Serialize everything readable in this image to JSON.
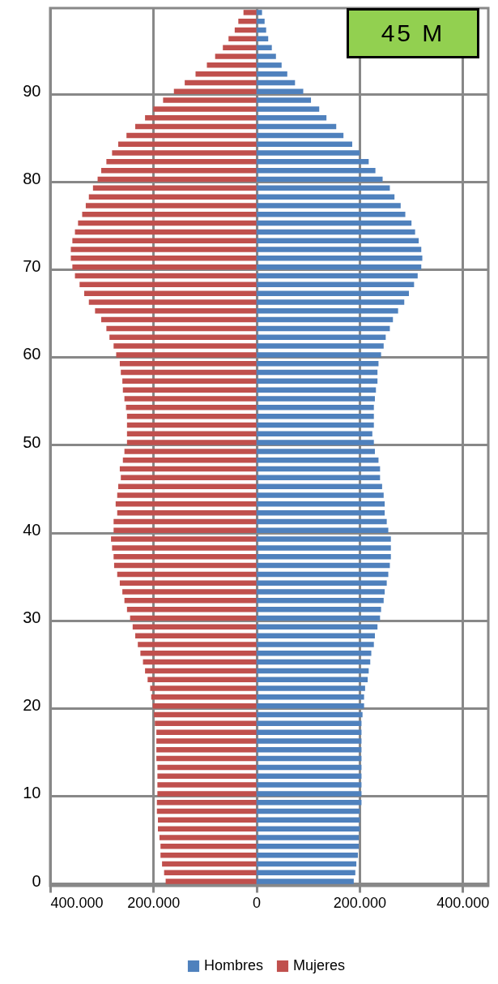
{
  "chart_data": {
    "type": "bar",
    "orientation": "horizontal",
    "categories": [
      null,
      null,
      null,
      null,
      null,
      null,
      null,
      null,
      null,
      "90",
      null,
      null,
      null,
      null,
      null,
      null,
      null,
      null,
      null,
      "80",
      null,
      null,
      null,
      null,
      null,
      null,
      null,
      null,
      null,
      "70",
      null,
      null,
      null,
      null,
      null,
      null,
      null,
      null,
      null,
      "60",
      null,
      null,
      null,
      null,
      null,
      null,
      null,
      null,
      null,
      "50",
      null,
      null,
      null,
      null,
      null,
      null,
      null,
      null,
      null,
      "40",
      null,
      null,
      null,
      null,
      null,
      null,
      null,
      null,
      null,
      "30",
      null,
      null,
      null,
      null,
      null,
      null,
      null,
      null,
      null,
      "20",
      null,
      null,
      null,
      null,
      null,
      null,
      null,
      null,
      null,
      "10",
      null,
      null,
      null,
      null,
      null,
      null,
      null,
      null,
      null,
      "0"
    ],
    "series": [
      {
        "name": "Hombres",
        "color": "#4f81bd",
        "values": [
          11000,
          16000,
          19000,
          23000,
          30000,
          38000,
          49000,
          60000,
          75000,
          91000,
          106000,
          122000,
          136000,
          155000,
          169000,
          186000,
          201000,
          218000,
          231000,
          245000,
          259000,
          268000,
          280000,
          289000,
          301000,
          308000,
          315000,
          320000,
          322000,
          320000,
          313000,
          306000,
          296000,
          287000,
          275000,
          265000,
          259000,
          251000,
          247000,
          242000,
          237000,
          235000,
          235000,
          232000,
          230000,
          228000,
          228000,
          228000,
          225000,
          228000,
          230000,
          237000,
          240000,
          240000,
          244000,
          247000,
          249000,
          249000,
          253000,
          256000,
          261000,
          261000,
          261000,
          259000,
          256000,
          253000,
          249000,
          247000,
          242000,
          240000,
          235000,
          230000,
          228000,
          223000,
          221000,
          218000,
          216000,
          211000,
          209000,
          209000,
          206000,
          204000,
          204000,
          204000,
          204000,
          204000,
          204000,
          204000,
          204000,
          204000,
          204000,
          201000,
          201000,
          201000,
          199000,
          199000,
          197000,
          194000,
          192000,
          189000
        ]
      },
      {
        "name": "Mujeres",
        "color": "#c0504d",
        "values": [
          -25000,
          -35000,
          -42000,
          -54000,
          -65000,
          -80000,
          -96000,
          -118000,
          -139000,
          -160000,
          -181000,
          -200000,
          -216000,
          -235000,
          -252000,
          -268000,
          -280000,
          -291000,
          -301000,
          -308000,
          -317000,
          -325000,
          -331000,
          -338000,
          -346000,
          -352000,
          -357000,
          -360000,
          -360000,
          -357000,
          -352000,
          -343000,
          -334000,
          -325000,
          -313000,
          -301000,
          -291000,
          -285000,
          -277000,
          -272000,
          -265000,
          -263000,
          -260000,
          -259000,
          -256000,
          -253000,
          -251000,
          -251000,
          -251000,
          -251000,
          -256000,
          -259000,
          -265000,
          -263000,
          -268000,
          -270000,
          -273000,
          -270000,
          -277000,
          -277000,
          -282000,
          -280000,
          -277000,
          -276000,
          -270000,
          -265000,
          -260000,
          -256000,
          -251000,
          -245000,
          -240000,
          -235000,
          -230000,
          -225000,
          -220000,
          -216000,
          -211000,
          -206000,
          -204000,
          -201000,
          -199000,
          -197000,
          -194000,
          -194000,
          -194000,
          -194000,
          -192000,
          -192000,
          -192000,
          -192000,
          -193000,
          -193000,
          -191000,
          -191000,
          -188000,
          -186000,
          -186000,
          -183000,
          -179000,
          -176000
        ]
      }
    ],
    "xlim": [
      -400000,
      450000
    ],
    "xticks": [
      {
        "value": -400000,
        "label": "400.000"
      },
      {
        "value": -200000,
        "label": "200.000"
      },
      0,
      {
        "value": 200000,
        "label": "200.000"
      },
      {
        "value": 400000,
        "label": "400.000"
      }
    ],
    "annotations": [
      "45 M"
    ],
    "grid": true,
    "legend": "bottom",
    "stacked": true
  }
}
